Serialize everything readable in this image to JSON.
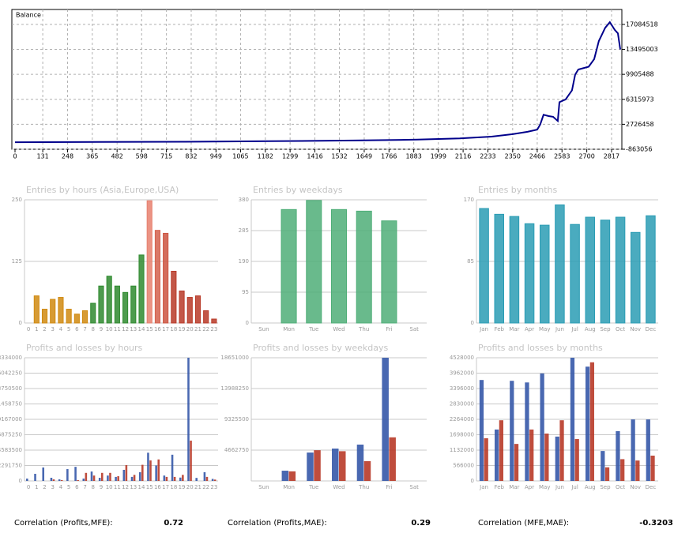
{
  "chart_data": [
    {
      "type": "line",
      "title": "Balance",
      "color": "#00008b",
      "x": [
        0,
        400,
        800,
        1200,
        1600,
        1900,
        2100,
        2250,
        2350,
        2420,
        2466,
        2480,
        2496,
        2520,
        2541,
        2563,
        2571,
        2600,
        2630,
        2645,
        2660,
        2709,
        2735,
        2757,
        2787,
        2809,
        2832,
        2847,
        2858
      ],
      "values": [
        150000,
        180000,
        220000,
        300000,
        400000,
        520000,
        700000,
        950000,
        1300000,
        1650000,
        1960000,
        2700000,
        4100000,
        3900000,
        3800000,
        3200000,
        5900000,
        6300000,
        7600000,
        9860000,
        10600000,
        11000000,
        12100000,
        14700000,
        16600000,
        17400000,
        16300000,
        15800000,
        13500000
      ],
      "xlim": [
        0,
        2860
      ],
      "xticks": [
        0,
        131,
        248,
        365,
        482,
        598,
        715,
        832,
        949,
        1065,
        1182,
        1299,
        1416,
        1532,
        1649,
        1766,
        1883,
        1999,
        2116,
        2233,
        2350,
        2466,
        2583,
        2700,
        2817
      ],
      "ylim": [
        -863056,
        19230000
      ],
      "yticks": [
        -863056,
        2726458,
        6315973,
        9905488,
        13495003,
        17084518
      ],
      "grid": true
    },
    {
      "type": "bar",
      "title": "Entries by hours (Asia,Europe,USA)",
      "categories": [
        "0",
        "1",
        "2",
        "3",
        "4",
        "5",
        "6",
        "7",
        "8",
        "9",
        "10",
        "11",
        "12",
        "13",
        "14",
        "15",
        "16",
        "17",
        "18",
        "19",
        "20",
        "21",
        "22",
        "23"
      ],
      "values": [
        0,
        55,
        28,
        48,
        52,
        28,
        18,
        25,
        40,
        75,
        95,
        75,
        62,
        75,
        138,
        248,
        188,
        182,
        105,
        65,
        52,
        55,
        25,
        8
      ],
      "colors": [
        "#d08a10",
        "#d08a10",
        "#d08a10",
        "#d08a10",
        "#d08a10",
        "#d08a10",
        "#d08a10",
        "#d08a10",
        "#2f8a2f",
        "#2f8a2f",
        "#2f8a2f",
        "#2f8a2f",
        "#2f8a2f",
        "#2f8a2f",
        "#2f8a2f",
        "#e8806e",
        "#d4604c",
        "#cc5440",
        "#b83a28",
        "#b83a28",
        "#b83a28",
        "#b83a28",
        "#b83a28",
        "#b83a28"
      ],
      "ylim": [
        0,
        250
      ],
      "yticks": [
        0,
        125,
        250
      ],
      "grid": true
    },
    {
      "type": "bar",
      "title": "Entries by weekdays",
      "categories": [
        "Sun",
        "Mon",
        "Tue",
        "Wed",
        "Thu",
        "Fri",
        "Sat"
      ],
      "values": [
        0,
        350,
        378,
        350,
        345,
        315,
        0
      ],
      "color": "#4fae78",
      "ylim": [
        0,
        380
      ],
      "yticks": [
        0,
        95,
        190,
        285,
        380
      ],
      "grid": true
    },
    {
      "type": "bar",
      "title": "Entries by months",
      "categories": [
        "Jan",
        "Feb",
        "Mar",
        "Apr",
        "May",
        "Jun",
        "Jul",
        "Aug",
        "Sep",
        "Oct",
        "Nov",
        "Dec"
      ],
      "values": [
        158,
        150,
        147,
        137,
        135,
        163,
        136,
        146,
        142,
        146,
        125,
        148
      ],
      "color": "#2a9cb4",
      "ylim": [
        0,
        170
      ],
      "yticks": [
        0,
        85,
        170
      ],
      "grid": true
    },
    {
      "type": "grouped_bar",
      "title": "Profits and losses by hours",
      "categories": [
        "0",
        "1",
        "2",
        "3",
        "4",
        "5",
        "6",
        "7",
        "8",
        "9",
        "10",
        "11",
        "12",
        "13",
        "14",
        "15",
        "16",
        "17",
        "18",
        "19",
        "20",
        "21",
        "22",
        "23"
      ],
      "series": [
        {
          "color": "#3558a8",
          "values": [
            350000,
            1060000,
            2000000,
            470000,
            230000,
            1760000,
            2100000,
            350000,
            1400000,
            470000,
            800000,
            600000,
            1650000,
            600000,
            1300000,
            4200000,
            2300000,
            800000,
            3900000,
            500000,
            18334000,
            450000,
            1300000,
            300000
          ]
        },
        {
          "color": "#b83a28",
          "values": [
            0,
            0,
            0,
            230000,
            120000,
            0,
            120000,
            1200000,
            800000,
            1200000,
            1200000,
            700000,
            2350000,
            900000,
            2400000,
            3050000,
            3200000,
            600000,
            600000,
            900000,
            6000000,
            0,
            600000,
            200000
          ]
        }
      ],
      "ylim": [
        0,
        18334000
      ],
      "yticks": [
        0,
        2291750,
        4583500,
        6875250,
        9167000,
        11458750,
        13750500,
        16042250,
        18334000
      ],
      "grid": true
    },
    {
      "type": "grouped_bar",
      "title": "Profits and losses by weekdays",
      "categories": [
        "Sun",
        "Mon",
        "Tue",
        "Wed",
        "Thu",
        "Fri",
        "Sat"
      ],
      "series": [
        {
          "color": "#3558a8",
          "values": [
            0,
            1550000,
            4300000,
            4900000,
            5500000,
            18651000,
            0
          ]
        },
        {
          "color": "#b83a28",
          "values": [
            0,
            1450000,
            4650000,
            4500000,
            3000000,
            6600000,
            0
          ]
        }
      ],
      "ylim": [
        0,
        18651000
      ],
      "yticks": [
        4662750,
        9325500,
        13988250,
        18651000
      ],
      "grid": true
    },
    {
      "type": "grouped_bar",
      "title": "Profits and losses by months",
      "categories": [
        "Jan",
        "Feb",
        "Mar",
        "Apr",
        "May",
        "Jun",
        "Jul",
        "Aug",
        "Sep",
        "Oct",
        "Nov",
        "Dec"
      ],
      "series": [
        {
          "color": "#3558a8",
          "values": [
            3710000,
            1890000,
            3680000,
            3620000,
            3950000,
            1630000,
            4528000,
            4200000,
            1100000,
            1830000,
            2260000,
            2260000
          ]
        },
        {
          "color": "#b83a28",
          "values": [
            1570000,
            2230000,
            1360000,
            1890000,
            1740000,
            2230000,
            1540000,
            4360000,
            500000,
            800000,
            750000,
            930000
          ]
        }
      ],
      "ylim": [
        0,
        4528000
      ],
      "yticks": [
        0,
        566000,
        1132000,
        1698000,
        2264000,
        2830000,
        3396000,
        3962000,
        4528000
      ],
      "grid": true
    }
  ],
  "correlations": [
    {
      "label": "Correlation (Profits,MFE):",
      "value": 0.72
    },
    {
      "label": "Correlation (Profits,MAE):",
      "value": 0.29
    },
    {
      "label": "Correlation (MFE,MAE):",
      "value": -0.3203
    }
  ]
}
